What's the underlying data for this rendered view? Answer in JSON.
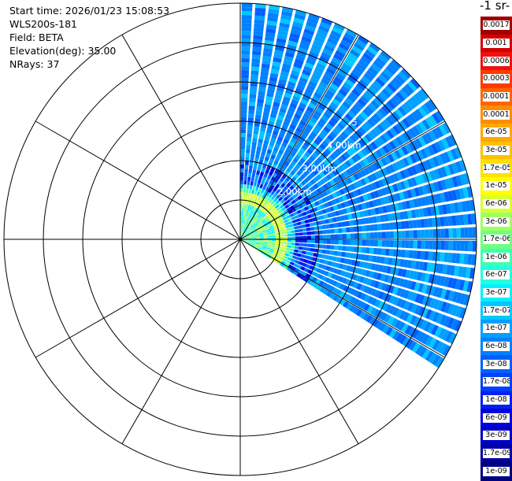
{
  "info": {
    "start_time": "Start time: 2026/01/23 15:08:53",
    "instrument": "WLS200s-181",
    "field": "Field: BETA",
    "elevation": "Elevation(deg): 35.00",
    "nrays": "NRays: 37"
  },
  "unit_label": "-1 sr-",
  "chart_data": {
    "type": "heatmap",
    "projection": "polar-ppi",
    "field": "BETA",
    "elevation_deg": 35.0,
    "n_rays": 37,
    "azimuth_range_deg": [
      0,
      120
    ],
    "ring_step_km": 0.5,
    "n_rings": 6,
    "spoke_step_deg": 30,
    "range_labels": [
      "2.00km",
      "3.00km",
      "4.00km",
      "5"
    ],
    "colorbar": {
      "labels": [
        "0.0017",
        "0.001",
        "0.0006",
        "0.0003",
        "0.00017",
        "0.0001",
        "6e-05",
        "3e-05",
        "1.7e-05",
        "1e-05",
        "6e-06",
        "3e-06",
        "1.7e-06",
        "1e-06",
        "6e-07",
        "3e-07",
        "1.7e-07",
        "1e-07",
        "6e-08",
        "3e-08",
        "1.7e-08",
        "1e-08",
        "6e-09",
        "3e-09",
        "1.7e-09",
        "1e-09"
      ],
      "colors": [
        "#a00000",
        "#d20000",
        "#f01010",
        "#ff3a00",
        "#ff6600",
        "#ff8c00",
        "#ffa800",
        "#ffc000",
        "#ffe000",
        "#ffff00",
        "#d8ff30",
        "#a0ff60",
        "#70ff80",
        "#40ffb0",
        "#20ffe0",
        "#00f0ff",
        "#00c8ff",
        "#00a0ff",
        "#0080ff",
        "#0060ff",
        "#0040ff",
        "#0020f0",
        "#0000e0",
        "#0000c0",
        "#0000a0",
        "#000080"
      ]
    }
  }
}
